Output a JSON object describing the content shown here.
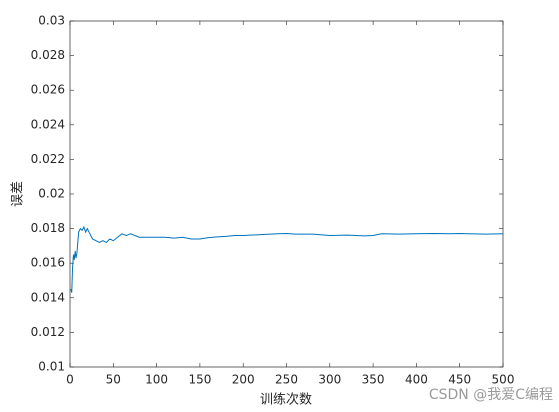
{
  "chart_data": {
    "type": "line",
    "xlabel": "训练次数",
    "ylabel": "误差",
    "watermark": "CSDN @我爱C编程",
    "xlim": [
      0,
      500
    ],
    "xticks": [
      0,
      50,
      100,
      150,
      200,
      250,
      300,
      350,
      400,
      450,
      500
    ],
    "ylim": [
      0.01,
      0.03
    ],
    "yticks": [
      0.01,
      0.012,
      0.014,
      0.016,
      0.018,
      0.02,
      0.022,
      0.024,
      0.026,
      0.028,
      0.03
    ],
    "x": [
      1,
      2,
      3,
      4,
      5,
      6,
      7,
      8,
      10,
      12,
      14,
      16,
      18,
      20,
      23,
      26,
      30,
      34,
      38,
      42,
      46,
      50,
      55,
      60,
      65,
      70,
      80,
      90,
      100,
      110,
      120,
      130,
      140,
      150,
      160,
      170,
      180,
      190,
      200,
      220,
      240,
      250,
      260,
      280,
      300,
      320,
      340,
      350,
      360,
      380,
      400,
      420,
      440,
      450,
      460,
      480,
      500
    ],
    "series": [
      {
        "name": "误差",
        "color": "#0072bd",
        "values": [
          0.0145,
          0.0143,
          0.0158,
          0.0165,
          0.0162,
          0.0167,
          0.0163,
          0.0166,
          0.0178,
          0.018,
          0.0179,
          0.0181,
          0.0178,
          0.018,
          0.0177,
          0.0174,
          0.0173,
          0.0172,
          0.0173,
          0.0172,
          0.0174,
          0.0173,
          0.0175,
          0.0177,
          0.0176,
          0.0177,
          0.0175,
          0.0175,
          0.0175,
          0.0175,
          0.01745,
          0.0175,
          0.0174,
          0.0174,
          0.01748,
          0.01752,
          0.01755,
          0.0176,
          0.0176,
          0.01765,
          0.0177,
          0.01772,
          0.01768,
          0.01768,
          0.0176,
          0.01762,
          0.01758,
          0.0176,
          0.0177,
          0.01768,
          0.0177,
          0.01772,
          0.0177,
          0.01772,
          0.0177,
          0.01768,
          0.0177
        ]
      }
    ]
  }
}
